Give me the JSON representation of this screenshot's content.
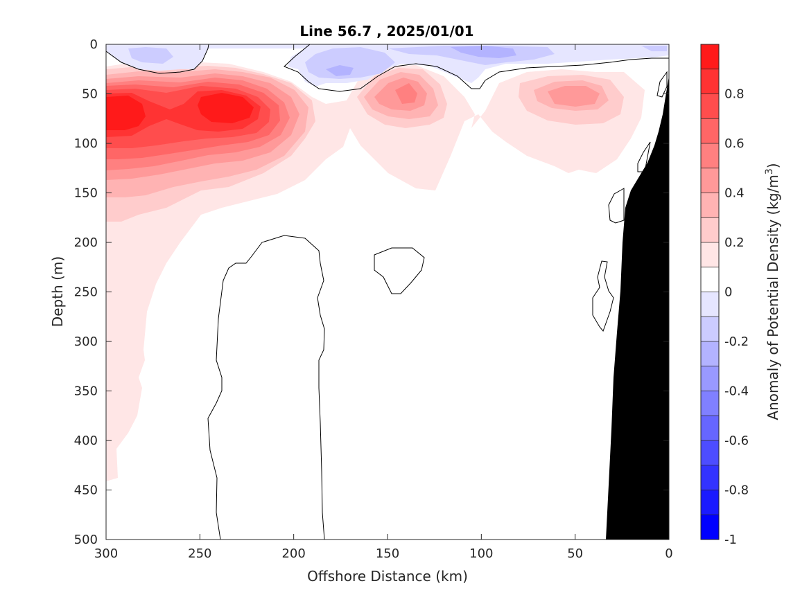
{
  "chart_data": {
    "type": "contour",
    "title": "Line 56.7 , 2025/01/01",
    "xlabel": "Offshore Distance (km)",
    "ylabel": "Depth (m)",
    "xlim": [
      300,
      0
    ],
    "ylim": [
      0,
      500
    ],
    "x_reversed": true,
    "y_reversed": true,
    "x_ticks": [
      300,
      250,
      200,
      150,
      100,
      50,
      0
    ],
    "y_ticks": [
      0,
      50,
      100,
      150,
      200,
      250,
      300,
      350,
      400,
      450,
      500
    ],
    "x_tick_labels": [
      "300",
      "250",
      "200",
      "150",
      "100",
      "50",
      "0"
    ],
    "y_tick_labels": [
      "0",
      "50",
      "100",
      "150",
      "200",
      "250",
      "300",
      "350",
      "400",
      "450",
      "500"
    ],
    "colorbar": {
      "label": "Anomaly of Potential Density (kg/m",
      "label_sup": "3",
      "label_close": ")",
      "range": [
        -1,
        1
      ],
      "levels": [
        -1,
        -0.9,
        -0.8,
        -0.7,
        -0.6,
        -0.5,
        -0.4,
        -0.3,
        -0.2,
        -0.1,
        0,
        0.1,
        0.2,
        0.3,
        0.4,
        0.5,
        0.6,
        0.7,
        0.8,
        0.9,
        1
      ],
      "colors": [
        "#0000ff",
        "#1a1aff",
        "#3333ff",
        "#4d4dff",
        "#6666ff",
        "#8080ff",
        "#9999ff",
        "#b3b3ff",
        "#ccccff",
        "#e6e6ff",
        "#ffffff",
        "#ffe6e6",
        "#ffcccc",
        "#ffb3b3",
        "#ff9999",
        "#ff8080",
        "#ff6666",
        "#ff4d4d",
        "#ff3333",
        "#ff1a1a",
        "#ff0000"
      ],
      "tick_values": [
        0.8,
        0.6,
        0.4,
        0.2,
        0,
        -0.2,
        -0.4,
        -0.6,
        -0.8,
        -1
      ],
      "tick_labels": [
        "0.8",
        "0.6",
        "0.4",
        "0.2",
        "0",
        "-0.2",
        "-0.4",
        "-0.6",
        "-0.8",
        "-1"
      ]
    },
    "features": [
      {
        "name": "Surface low-density anomaly (negative)",
        "x_range": [
          285,
          0
        ],
        "depth_range": [
          0,
          45
        ],
        "min_value": -0.3
      },
      {
        "name": "Subsurface dense core 1",
        "x_center": 290,
        "depth_center": 65,
        "max_value": 0.9
      },
      {
        "name": "Subsurface dense core 2",
        "x_center": 225,
        "depth_center": 62,
        "max_value": 0.9
      },
      {
        "name": "Subsurface dense core 3",
        "x_center": 140,
        "depth_center": 55,
        "max_value": 0.5
      },
      {
        "name": "Subsurface dense core 4",
        "x_center": 55,
        "depth_center": 50,
        "max_value": 0.4
      },
      {
        "name": "Bathymetry / continental slope",
        "fill": "#000000"
      }
    ],
    "zero_contour_color": "#000000",
    "bathymetry_color": "#000000"
  }
}
